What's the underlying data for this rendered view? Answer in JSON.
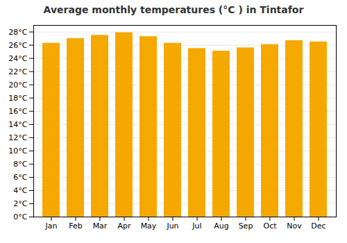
{
  "chart_data": {
    "type": "bar",
    "title": "Average monthly temperatures (°C ) in Tintafor",
    "categories": [
      "Jan",
      "Feb",
      "Mar",
      "Apr",
      "May",
      "Jun",
      "Jul",
      "Aug",
      "Sep",
      "Oct",
      "Nov",
      "Dec"
    ],
    "values": [
      26.3,
      27.0,
      27.5,
      27.9,
      27.3,
      26.3,
      25.5,
      25.1,
      25.6,
      26.1,
      26.7,
      26.5
    ],
    "color": "#F5A800",
    "ylim": [
      0,
      29
    ],
    "yticks": [
      {
        "value": 0,
        "label": "0°C"
      },
      {
        "value": 2,
        "label": "2°C"
      },
      {
        "value": 4,
        "label": "4°C"
      },
      {
        "value": 6,
        "label": "6°C"
      },
      {
        "value": 8,
        "label": "8°C"
      },
      {
        "value": 10,
        "label": "10°C"
      },
      {
        "value": 12,
        "label": "12°C"
      },
      {
        "value": 14,
        "label": "14°C"
      },
      {
        "value": 16,
        "label": "16°C"
      },
      {
        "value": 18,
        "label": "18°C"
      },
      {
        "value": 20,
        "label": "20°C"
      },
      {
        "value": 22,
        "label": "22°C"
      },
      {
        "value": 24,
        "label": "24°C"
      },
      {
        "value": 26,
        "label": "26°C"
      },
      {
        "value": 28,
        "label": "28°C"
      }
    ],
    "grid": true
  }
}
